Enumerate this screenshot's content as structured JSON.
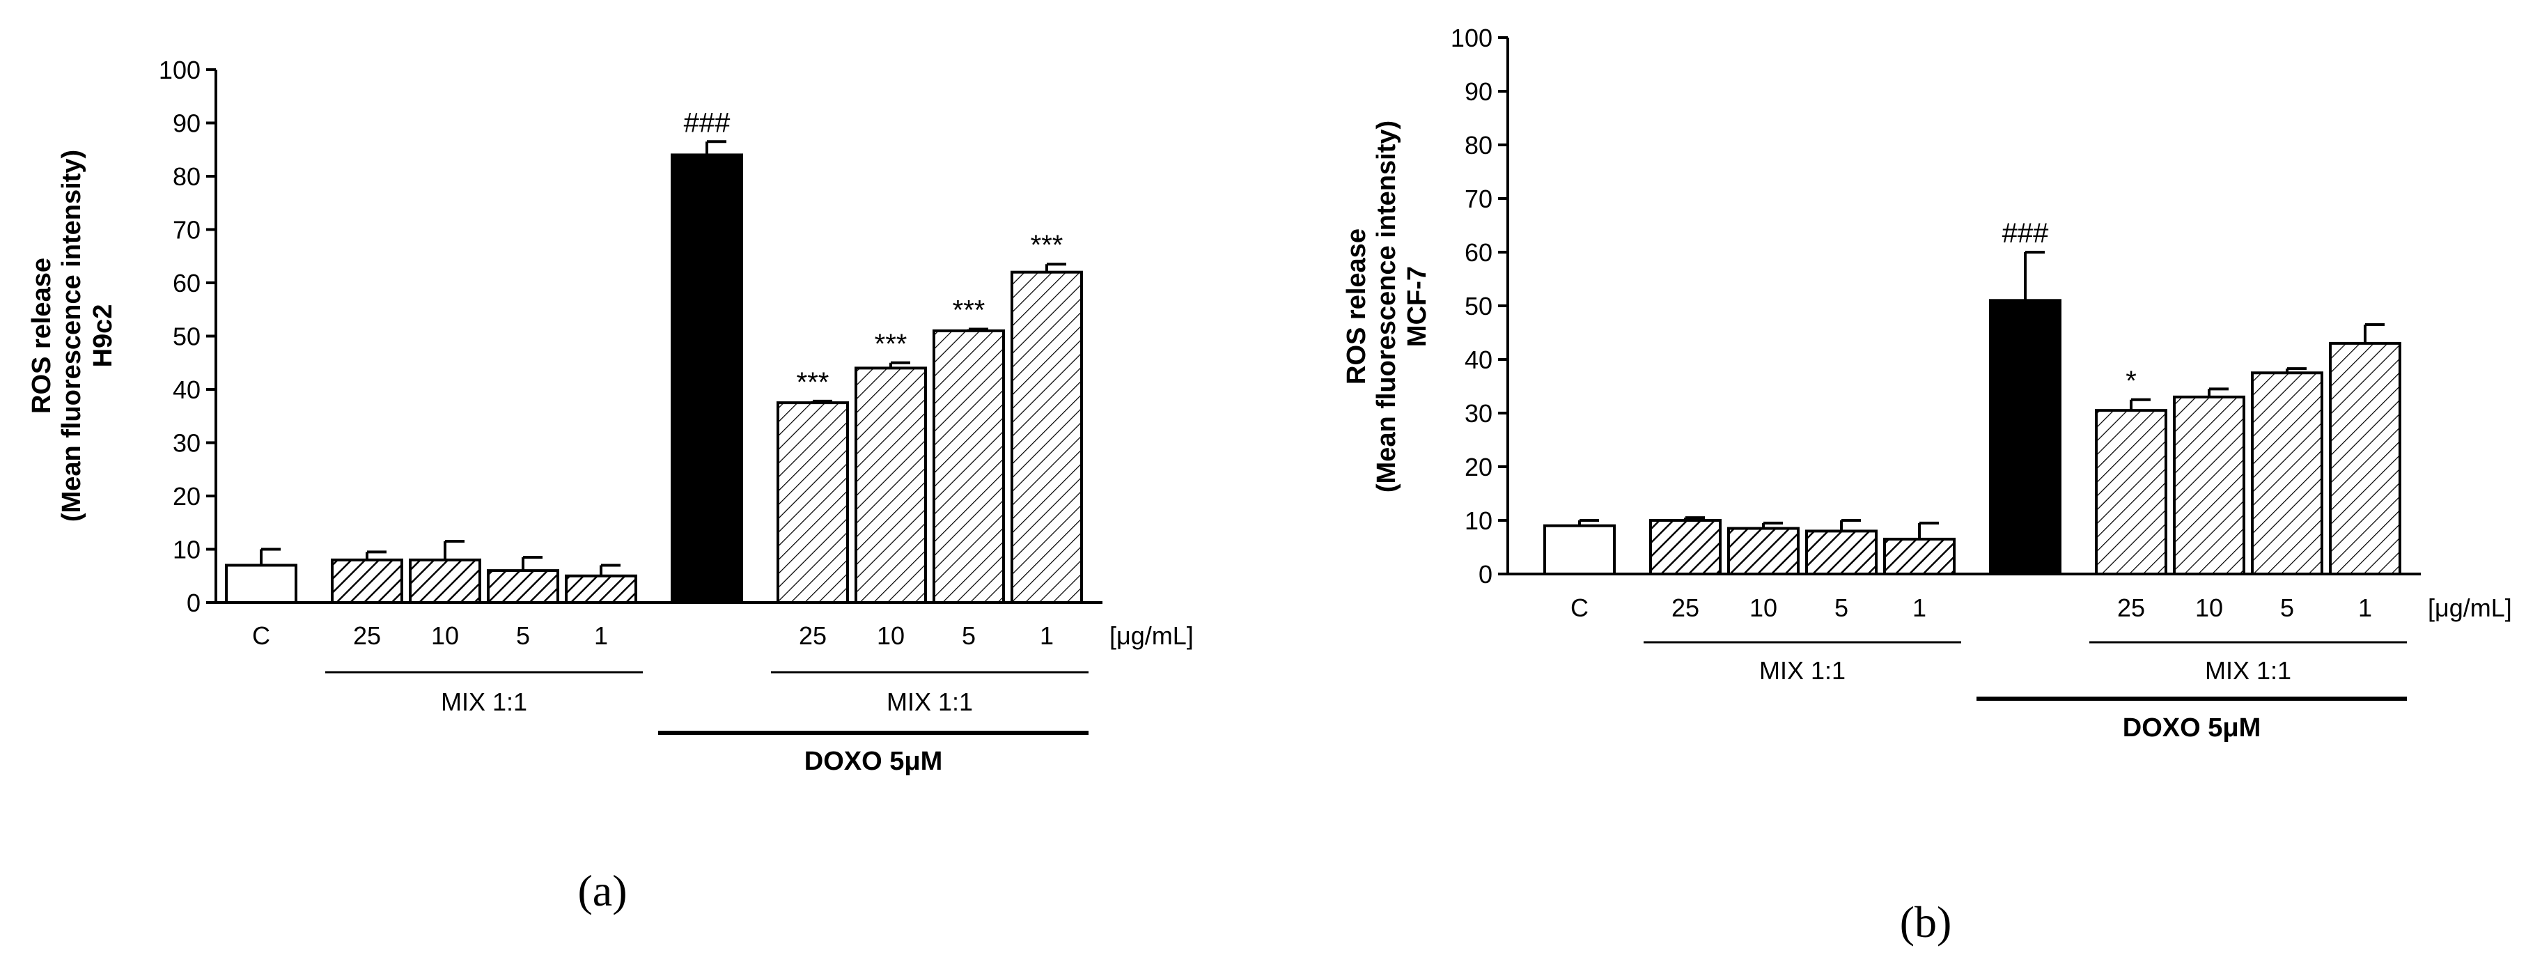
{
  "chart_data": [
    {
      "panel_label": "(a)",
      "type": "bar",
      "ylabel_lines": [
        "ROS release",
        "(Mean fluorescence intensity)",
        "H9c2"
      ],
      "ylim": [
        0,
        100
      ],
      "yticks": [
        "0",
        "10",
        "20",
        "30",
        "40",
        "50",
        "60",
        "70",
        "80",
        "90",
        "100"
      ],
      "unit_label": "[μg/mL]",
      "categories": [
        "C",
        "25",
        "10",
        "5",
        "1",
        "",
        "25",
        "10",
        "5",
        "1"
      ],
      "values": [
        7,
        8,
        8,
        6,
        5,
        84,
        37.5,
        44,
        51,
        62
      ],
      "errors": [
        3,
        1.5,
        3.5,
        2.5,
        2,
        2.5,
        0.3,
        1,
        0.3,
        1.5
      ],
      "annotations": [
        "",
        "",
        "",
        "",
        "",
        "###",
        "***",
        "***",
        "***",
        "***"
      ],
      "fills": [
        "white",
        "hatch",
        "hatch",
        "hatch",
        "hatch",
        "black",
        "hatch-light",
        "hatch-light",
        "hatch-light",
        "hatch-light"
      ],
      "groups": [
        {
          "label": "MIX 1:1",
          "from": 1,
          "to": 4
        },
        {
          "label": "MIX 1:1",
          "from": 6,
          "to": 9
        }
      ],
      "doxo": {
        "label": "DOXO 5μM",
        "from": 5,
        "to": 9
      }
    },
    {
      "panel_label": "(b)",
      "type": "bar",
      "ylabel_lines": [
        "ROS release",
        "(Mean fluorescence intensity)",
        "MCF-7"
      ],
      "ylim": [
        0,
        100
      ],
      "yticks": [
        "0",
        "10",
        "20",
        "30",
        "40",
        "50",
        "60",
        "70",
        "80",
        "90",
        "100"
      ],
      "unit_label": "[μg/mL]",
      "categories": [
        "C",
        "25",
        "10",
        "5",
        "1",
        "",
        "25",
        "10",
        "5",
        "1"
      ],
      "values": [
        9,
        10,
        8.5,
        8,
        6.5,
        51,
        30.5,
        33,
        37.5,
        43
      ],
      "errors": [
        1,
        0.5,
        1,
        2,
        3,
        9,
        2,
        1.5,
        0.8,
        3.5
      ],
      "annotations": [
        "",
        "",
        "",
        "",
        "",
        "###",
        "*",
        "",
        "",
        ""
      ],
      "fills": [
        "white",
        "hatch",
        "hatch",
        "hatch",
        "hatch",
        "black",
        "hatch-light",
        "hatch-light",
        "hatch-light",
        "hatch-light"
      ],
      "groups": [
        {
          "label": "MIX 1:1",
          "from": 1,
          "to": 4
        },
        {
          "label": "MIX 1:1",
          "from": 6,
          "to": 9
        }
      ],
      "doxo": {
        "label": "DOXO 5μM",
        "from": 5,
        "to": 9
      }
    }
  ]
}
